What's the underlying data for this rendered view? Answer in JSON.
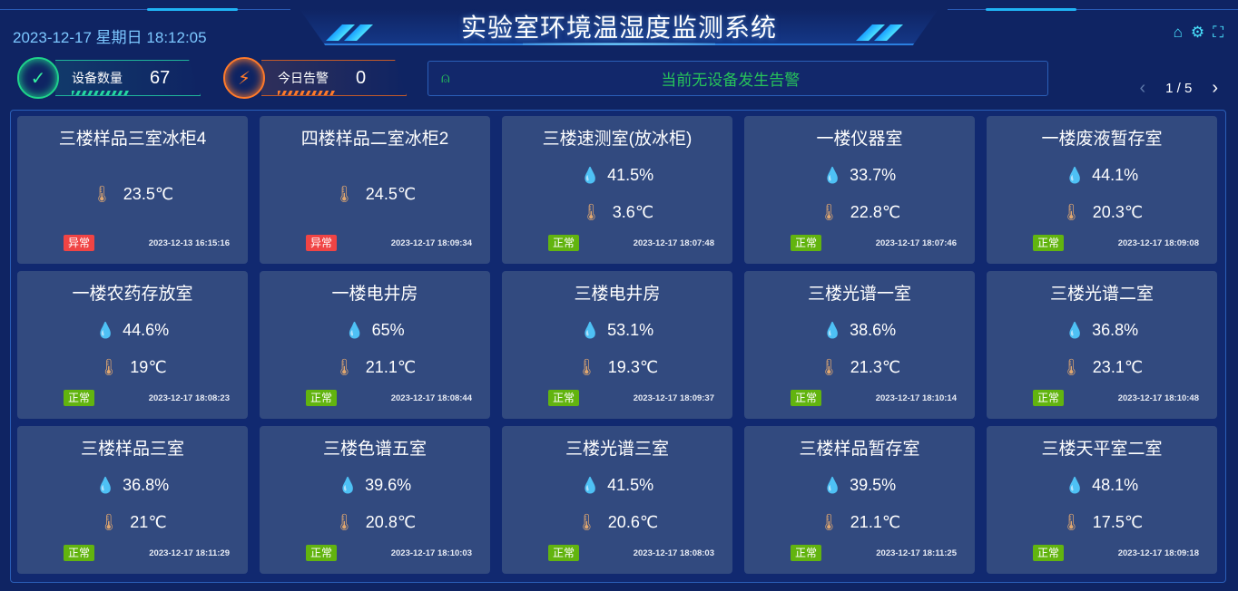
{
  "header": {
    "title": "实验室环境温湿度监测系统",
    "datetime": "2023-12-17 星期日 18:12:05",
    "tools": [
      {
        "icon": "home-icon",
        "glyph": "⌂"
      },
      {
        "icon": "gear-icon",
        "glyph": "⚙"
      },
      {
        "icon": "fullscreen-icon",
        "glyph": "⛶"
      }
    ]
  },
  "stats": {
    "devices_label": "设备数量",
    "devices_value": "67",
    "alarms_label": "今日告警",
    "alarms_value": "0"
  },
  "alarm": {
    "message": "当前无设备发生告警",
    "icon": "siren-icon"
  },
  "pager": {
    "text": "1 / 5",
    "prev": "‹",
    "next": "›"
  },
  "colors": {
    "normal": "#62b40f",
    "abnormal": "#f04444",
    "humidity": "#22d7ee",
    "temperature": "#e0a770",
    "alarm_text": "#27c35a"
  },
  "cards": [
    {
      "name": "三楼样品三室冰柜4",
      "humidity": null,
      "temperature": "23.5℃",
      "status": "异常",
      "time": "2023-12-13 16:15:16"
    },
    {
      "name": "四楼样品二室冰柜2",
      "humidity": null,
      "temperature": "24.5℃",
      "status": "异常",
      "time": "2023-12-17 18:09:34"
    },
    {
      "name": "三楼速测室(放冰柜)",
      "humidity": "41.5%",
      "temperature": "3.6℃",
      "status": "正常",
      "time": "2023-12-17 18:07:48"
    },
    {
      "name": "一楼仪器室",
      "humidity": "33.7%",
      "temperature": "22.8℃",
      "status": "正常",
      "time": "2023-12-17 18:07:46"
    },
    {
      "name": "一楼废液暂存室",
      "humidity": "44.1%",
      "temperature": "20.3℃",
      "status": "正常",
      "time": "2023-12-17 18:09:08"
    },
    {
      "name": "一楼农药存放室",
      "humidity": "44.6%",
      "temperature": "19℃",
      "status": "正常",
      "time": "2023-12-17 18:08:23"
    },
    {
      "name": "一楼电井房",
      "humidity": "65%",
      "temperature": "21.1℃",
      "status": "正常",
      "time": "2023-12-17 18:08:44"
    },
    {
      "name": "三楼电井房",
      "humidity": "53.1%",
      "temperature": "19.3℃",
      "status": "正常",
      "time": "2023-12-17 18:09:37"
    },
    {
      "name": "三楼光谱一室",
      "humidity": "38.6%",
      "temperature": "21.3℃",
      "status": "正常",
      "time": "2023-12-17 18:10:14"
    },
    {
      "name": "三楼光谱二室",
      "humidity": "36.8%",
      "temperature": "23.1℃",
      "status": "正常",
      "time": "2023-12-17 18:10:48"
    },
    {
      "name": "三楼样品三室",
      "humidity": "36.8%",
      "temperature": "21℃",
      "status": "正常",
      "time": "2023-12-17 18:11:29"
    },
    {
      "name": "三楼色谱五室",
      "humidity": "39.6%",
      "temperature": "20.8℃",
      "status": "正常",
      "time": "2023-12-17 18:10:03"
    },
    {
      "name": "三楼光谱三室",
      "humidity": "41.5%",
      "temperature": "20.6℃",
      "status": "正常",
      "time": "2023-12-17 18:08:03"
    },
    {
      "name": "三楼样品暂存室",
      "humidity": "39.5%",
      "temperature": "21.1℃",
      "status": "正常",
      "time": "2023-12-17 18:11:25"
    },
    {
      "name": "三楼天平室二室",
      "humidity": "48.1%",
      "temperature": "17.5℃",
      "status": "正常",
      "time": "2023-12-17 18:09:18"
    }
  ]
}
